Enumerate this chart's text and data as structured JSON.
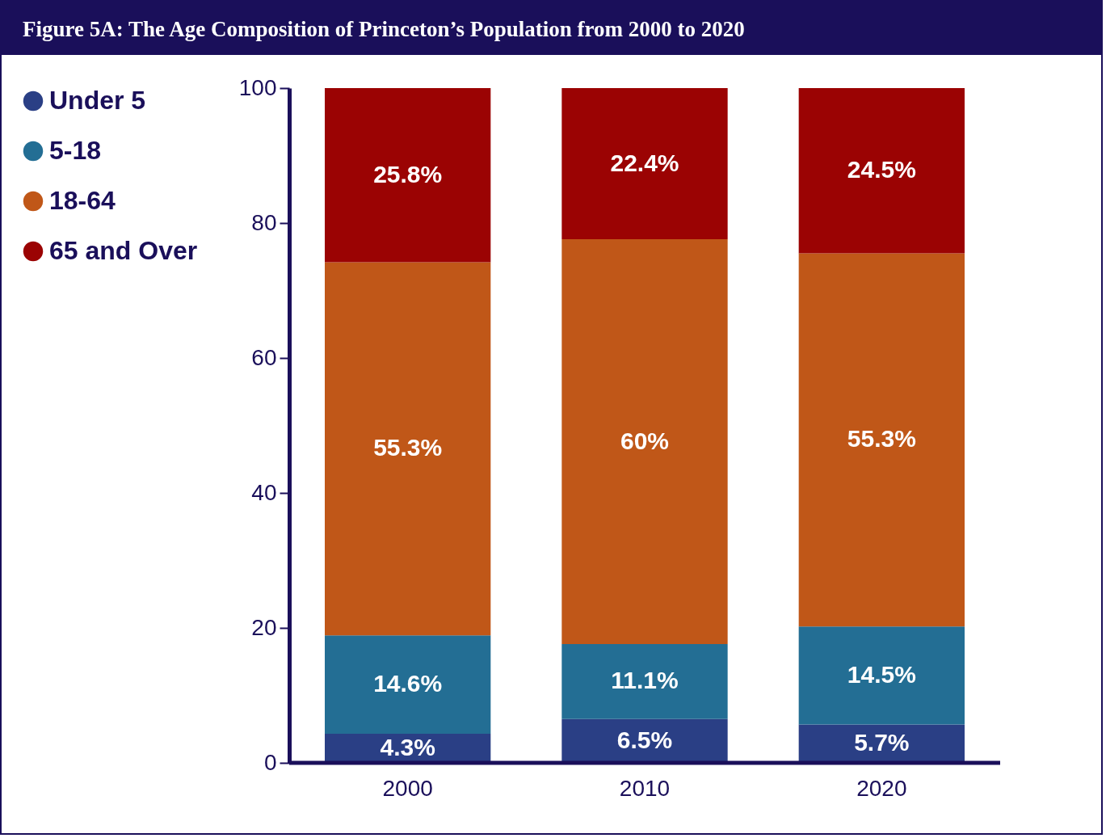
{
  "chart_data": {
    "type": "bar",
    "title": "Figure 5A: The Age Composition of Princeton’s Population from 2000 to 2020",
    "categories": [
      "2000",
      "2010",
      "2020"
    ],
    "stacked": true,
    "series": [
      {
        "name": "Under 5",
        "color": "#2a3f85",
        "values": [
          4.3,
          6.5,
          5.7
        ],
        "value_labels": [
          "4.3%",
          "6.5%",
          "5.7%"
        ]
      },
      {
        "name": "5-18",
        "color": "#236e94",
        "values": [
          14.6,
          11.1,
          14.5
        ],
        "value_labels": [
          "14.6%",
          "11.1%",
          "14.5%"
        ]
      },
      {
        "name": "18-64",
        "color": "#c05718",
        "values": [
          55.3,
          60,
          55.3
        ],
        "value_labels": [
          "55.3%",
          "60%",
          "55.3%"
        ]
      },
      {
        "name": "65 and Over",
        "color": "#9b0303",
        "values": [
          25.8,
          22.4,
          24.5
        ],
        "value_labels": [
          "25.8%",
          "22.4%",
          "24.5%"
        ]
      }
    ],
    "ylim": [
      0,
      100
    ],
    "yticks": [
      0,
      20,
      40,
      60,
      80,
      100
    ],
    "grid": false,
    "legend": "top left"
  }
}
